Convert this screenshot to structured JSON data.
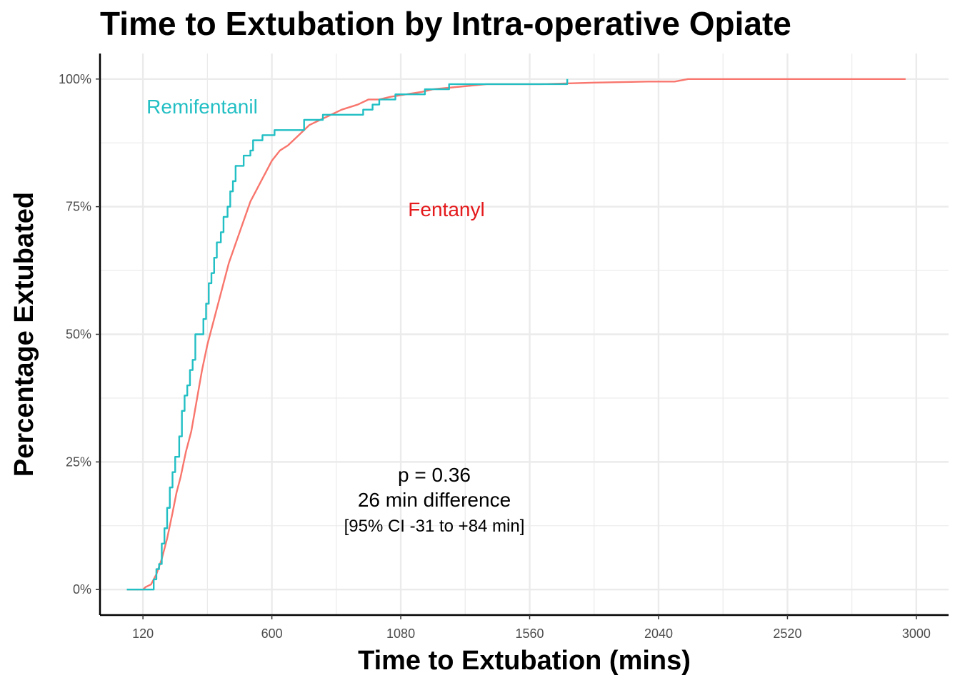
{
  "chart_data": {
    "type": "line",
    "title": "Time to Extubation by Intra-operative Opiate",
    "xlabel": "Time to Extubation (mins)",
    "ylabel": "Percentage Extubated",
    "xlim": [
      -40,
      3120
    ],
    "ylim": [
      -0.05,
      1.05
    ],
    "x_ticks": [
      120,
      600,
      1080,
      1560,
      2040,
      2520,
      3000
    ],
    "y_ticks": [
      {
        "value": 0,
        "label": "0%"
      },
      {
        "value": 0.25,
        "label": "25%"
      },
      {
        "value": 0.5,
        "label": "50%"
      },
      {
        "value": 0.75,
        "label": "75%"
      },
      {
        "value": 1,
        "label": "100%"
      }
    ],
    "grid": true,
    "legend": "none (direct labels)",
    "series": [
      {
        "name": "Remifentanil",
        "color": "#22BFC4",
        "step": true,
        "points": [
          [
            60,
            0
          ],
          [
            150,
            0
          ],
          [
            160,
            0.02
          ],
          [
            170,
            0.04
          ],
          [
            180,
            0.05
          ],
          [
            190,
            0.09
          ],
          [
            200,
            0.12
          ],
          [
            210,
            0.16
          ],
          [
            220,
            0.2
          ],
          [
            230,
            0.23
          ],
          [
            240,
            0.26
          ],
          [
            255,
            0.3
          ],
          [
            265,
            0.35
          ],
          [
            275,
            0.38
          ],
          [
            285,
            0.4
          ],
          [
            295,
            0.43
          ],
          [
            305,
            0.45
          ],
          [
            315,
            0.5
          ],
          [
            335,
            0.5
          ],
          [
            345,
            0.53
          ],
          [
            355,
            0.56
          ],
          [
            365,
            0.6
          ],
          [
            375,
            0.62
          ],
          [
            385,
            0.65
          ],
          [
            395,
            0.68
          ],
          [
            410,
            0.7
          ],
          [
            420,
            0.73
          ],
          [
            435,
            0.75
          ],
          [
            445,
            0.78
          ],
          [
            455,
            0.8
          ],
          [
            465,
            0.83
          ],
          [
            480,
            0.83
          ],
          [
            495,
            0.85
          ],
          [
            520,
            0.86
          ],
          [
            530,
            0.88
          ],
          [
            550,
            0.88
          ],
          [
            565,
            0.89
          ],
          [
            595,
            0.89
          ],
          [
            610,
            0.9
          ],
          [
            700,
            0.9
          ],
          [
            720,
            0.92
          ],
          [
            760,
            0.92
          ],
          [
            790,
            0.93
          ],
          [
            870,
            0.93
          ],
          [
            940,
            0.94
          ],
          [
            975,
            0.95
          ],
          [
            1000,
            0.96
          ],
          [
            1050,
            0.96
          ],
          [
            1060,
            0.97
          ],
          [
            1150,
            0.97
          ],
          [
            1170,
            0.98
          ],
          [
            1240,
            0.98
          ],
          [
            1260,
            0.99
          ],
          [
            1700,
            0.99
          ],
          [
            1700,
            1.0
          ]
        ]
      },
      {
        "name": "Fentanyl",
        "color": "#F8766D",
        "step": false,
        "points": [
          [
            60,
            0
          ],
          [
            120,
            0
          ],
          [
            130,
            0.005
          ],
          [
            150,
            0.01
          ],
          [
            170,
            0.03
          ],
          [
            190,
            0.06
          ],
          [
            210,
            0.1
          ],
          [
            230,
            0.15
          ],
          [
            245,
            0.19
          ],
          [
            260,
            0.22
          ],
          [
            280,
            0.27
          ],
          [
            300,
            0.31
          ],
          [
            320,
            0.37
          ],
          [
            340,
            0.43
          ],
          [
            360,
            0.48
          ],
          [
            380,
            0.52
          ],
          [
            400,
            0.56
          ],
          [
            420,
            0.6
          ],
          [
            440,
            0.64
          ],
          [
            460,
            0.67
          ],
          [
            480,
            0.7
          ],
          [
            500,
            0.73
          ],
          [
            520,
            0.76
          ],
          [
            540,
            0.78
          ],
          [
            560,
            0.8
          ],
          [
            580,
            0.82
          ],
          [
            600,
            0.84
          ],
          [
            630,
            0.86
          ],
          [
            660,
            0.87
          ],
          [
            700,
            0.89
          ],
          [
            740,
            0.91
          ],
          [
            780,
            0.92
          ],
          [
            820,
            0.93
          ],
          [
            860,
            0.94
          ],
          [
            920,
            0.95
          ],
          [
            960,
            0.96
          ],
          [
            1000,
            0.96
          ],
          [
            1040,
            0.965
          ],
          [
            1100,
            0.97
          ],
          [
            1160,
            0.975
          ],
          [
            1200,
            0.98
          ],
          [
            1300,
            0.985
          ],
          [
            1400,
            0.99
          ],
          [
            1600,
            0.99
          ],
          [
            1800,
            0.993
          ],
          [
            2000,
            0.995
          ],
          [
            2100,
            0.995
          ],
          [
            2150,
            1.0
          ],
          [
            2960,
            1.0
          ]
        ]
      }
    ],
    "annotations": {
      "remifentanil_label": "Remifentanil",
      "fentanyl_label": "Fentanyl",
      "p_value": "p = 0.36",
      "difference": "26 min difference",
      "ci": "[95% CI -31 to +84 min]"
    },
    "colors": {
      "remifentanil": "#22BFC4",
      "fentanyl_line": "#F8766D",
      "fentanyl_label": "#E41A1C",
      "grid": "#EBEBEB",
      "axis": "#000000"
    }
  }
}
